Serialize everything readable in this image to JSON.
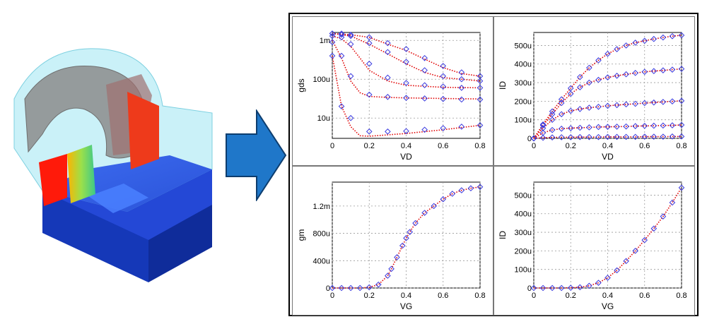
{
  "chart_data": [
    {
      "type": "scatter",
      "xlabel": "VD",
      "ylabel": "gds",
      "yscale": "log",
      "xlim": [
        0,
        0.8
      ],
      "ylim": [
        3e-06,
        0.0016
      ],
      "xticks": [
        "0",
        "0.2",
        "0.4",
        "0.6",
        "0.8"
      ],
      "yticks": [
        {
          "v": 1e-05,
          "label": "10u"
        },
        {
          "v": 0.0001,
          "label": "100u"
        },
        {
          "v": 0.001,
          "label": "1m"
        }
      ],
      "grid": true,
      "series": [
        {
          "x": [
            0,
            0.05,
            0.1,
            0.2,
            0.3,
            0.4,
            0.5,
            0.6,
            0.7,
            0.8
          ],
          "y": [
            0.0015,
            0.0015,
            0.0014,
            0.0012,
            0.00085,
            0.0006,
            0.00035,
            0.00022,
            0.00015,
            0.00012
          ]
        },
        {
          "x": [
            0,
            0.05,
            0.1,
            0.2,
            0.3,
            0.4,
            0.5,
            0.6,
            0.7,
            0.8
          ],
          "y": [
            0.0015,
            0.0014,
            0.0013,
            0.00085,
            0.0005,
            0.00028,
            0.00017,
            0.00012,
            0.0001,
            9e-05
          ]
        },
        {
          "x": [
            0,
            0.05,
            0.1,
            0.2,
            0.3,
            0.4,
            0.5,
            0.6,
            0.7,
            0.8
          ],
          "y": [
            0.0013,
            0.0012,
            0.0008,
            0.00025,
            0.00011,
            8e-05,
            7e-05,
            6.5e-05,
            6e-05,
            6e-05
          ]
        },
        {
          "x": [
            0,
            0.05,
            0.1,
            0.2,
            0.3,
            0.4,
            0.5,
            0.6,
            0.7,
            0.8
          ],
          "y": [
            0.0009,
            0.0004,
            0.00012,
            4e-05,
            3.5e-05,
            3.3e-05,
            3.2e-05,
            3.1e-05,
            3e-05,
            3e-05
          ]
        },
        {
          "x": [
            0,
            0.05,
            0.1,
            0.2,
            0.3,
            0.4,
            0.5,
            0.6,
            0.7,
            0.8
          ],
          "y": [
            0.0004,
            2e-05,
            1e-05,
            4.5e-06,
            4.5e-06,
            4.6e-06,
            5e-06,
            5.5e-06,
            6e-06,
            6.5e-06
          ]
        }
      ],
      "model": [
        {
          "x": [
            0,
            0.1,
            0.2,
            0.3,
            0.4,
            0.5,
            0.6,
            0.7,
            0.8
          ],
          "y": [
            0.0015,
            0.0014,
            0.0012,
            0.0008,
            0.00055,
            0.00033,
            0.0002,
            0.00014,
            0.00012
          ]
        },
        {
          "x": [
            0,
            0.1,
            0.2,
            0.3,
            0.4,
            0.5,
            0.6,
            0.7,
            0.8
          ],
          "y": [
            0.0015,
            0.0013,
            0.0008,
            0.00045,
            0.00025,
            0.00015,
            0.00011,
            0.0001,
            9e-05
          ]
        },
        {
          "x": [
            0,
            0.05,
            0.1,
            0.15,
            0.2,
            0.3,
            0.4,
            0.6,
            0.8
          ],
          "y": [
            0.0013,
            0.0011,
            0.0007,
            0.00035,
            0.00017,
            9e-05,
            7e-05,
            6.2e-05,
            6e-05
          ]
        },
        {
          "x": [
            0,
            0.05,
            0.1,
            0.15,
            0.2,
            0.3,
            0.4,
            0.6,
            0.8
          ],
          "y": [
            0.001,
            0.00035,
            9e-05,
            4.5e-05,
            3.6e-05,
            3.4e-05,
            3.3e-05,
            3.2e-05,
            3.1e-05
          ]
        },
        {
          "x": [
            0,
            0.05,
            0.1,
            0.15,
            0.2,
            0.4,
            0.6,
            0.8
          ],
          "y": [
            0.0004,
            2e-05,
            6e-06,
            3.5e-06,
            3.4e-06,
            4e-06,
            5e-06,
            6.5e-06
          ]
        }
      ]
    },
    {
      "type": "scatter",
      "xlabel": "VD",
      "ylabel": "ID",
      "xlim": [
        0,
        0.8
      ],
      "ylim": [
        0,
        570
      ],
      "xticks": [
        "0",
        "0.2",
        "0.4",
        "0.6",
        "0.8"
      ],
      "yticks": [
        {
          "v": 0,
          "label": "0"
        },
        {
          "v": 100,
          "label": "100u"
        },
        {
          "v": 200,
          "label": "200u"
        },
        {
          "v": 300,
          "label": "300u"
        },
        {
          "v": 400,
          "label": "400u"
        },
        {
          "v": 500,
          "label": "500u"
        }
      ],
      "grid": true,
      "series": [
        {
          "x": [
            0,
            0.05,
            0.1,
            0.15,
            0.2,
            0.25,
            0.3,
            0.35,
            0.4,
            0.45,
            0.5,
            0.55,
            0.6,
            0.65,
            0.7,
            0.75,
            0.8
          ],
          "y": [
            0,
            75,
            145,
            210,
            270,
            330,
            380,
            420,
            455,
            480,
            500,
            515,
            525,
            535,
            543,
            550,
            555
          ]
        },
        {
          "x": [
            0,
            0.05,
            0.1,
            0.15,
            0.2,
            0.25,
            0.3,
            0.35,
            0.4,
            0.45,
            0.5,
            0.55,
            0.6,
            0.65,
            0.7,
            0.75,
            0.8
          ],
          "y": [
            0,
            70,
            130,
            190,
            240,
            275,
            300,
            315,
            328,
            337,
            345,
            352,
            358,
            362,
            366,
            370,
            374
          ]
        },
        {
          "x": [
            0,
            0.05,
            0.1,
            0.15,
            0.2,
            0.25,
            0.3,
            0.35,
            0.4,
            0.45,
            0.5,
            0.55,
            0.6,
            0.65,
            0.7,
            0.75,
            0.8
          ],
          "y": [
            0,
            55,
            100,
            130,
            148,
            158,
            165,
            170,
            175,
            179,
            183,
            186,
            190,
            193,
            196,
            199,
            202
          ]
        },
        {
          "x": [
            0,
            0.05,
            0.1,
            0.15,
            0.2,
            0.25,
            0.3,
            0.35,
            0.4,
            0.45,
            0.5,
            0.55,
            0.6,
            0.65,
            0.7,
            0.75,
            0.8
          ],
          "y": [
            0,
            30,
            45,
            52,
            55,
            57,
            59,
            61,
            62,
            63,
            64,
            66,
            67,
            68,
            69,
            70,
            72
          ]
        },
        {
          "x": [
            0,
            0.05,
            0.1,
            0.15,
            0.2,
            0.25,
            0.3,
            0.35,
            0.4,
            0.45,
            0.5,
            0.55,
            0.6,
            0.65,
            0.7,
            0.75,
            0.8
          ],
          "y": [
            0,
            3,
            5,
            6,
            6,
            7,
            7,
            7,
            8,
            8,
            8,
            8,
            9,
            9,
            9,
            10,
            10
          ]
        }
      ]
    },
    {
      "type": "scatter",
      "xlabel": "VG",
      "ylabel": "gm",
      "xlim": [
        0,
        0.8
      ],
      "ylim": [
        0,
        0.00155
      ],
      "xticks": [
        "0",
        "0.2",
        "0.4",
        "0.6",
        "0.8"
      ],
      "yticks": [
        {
          "v": 0,
          "label": "0"
        },
        {
          "v": 0.0004,
          "label": "400u"
        },
        {
          "v": 0.0008,
          "label": "800u"
        },
        {
          "v": 0.0012,
          "label": "1.2m"
        }
      ],
      "grid": true,
      "series": [
        {
          "x": [
            0,
            0.05,
            0.1,
            0.15,
            0.2,
            0.25,
            0.3,
            0.32,
            0.35,
            0.38,
            0.4,
            0.42,
            0.45,
            0.5,
            0.55,
            0.6,
            0.65,
            0.7,
            0.75,
            0.8
          ],
          "y": [
            0,
            0,
            0,
            0,
            1e-05,
            5e-05,
            0.00018,
            0.00028,
            0.00045,
            0.00062,
            0.00073,
            0.00082,
            0.00095,
            0.0011,
            0.0012,
            0.0013,
            0.00138,
            0.00143,
            0.00146,
            0.00148
          ]
        }
      ]
    },
    {
      "type": "scatter",
      "xlabel": "VG",
      "ylabel": "ID",
      "xlim": [
        0,
        0.8
      ],
      "ylim": [
        0,
        570
      ],
      "xticks": [
        "0",
        "0.2",
        "0.4",
        "0.6",
        "0.8"
      ],
      "yticks": [
        {
          "v": 0,
          "label": "0"
        },
        {
          "v": 100,
          "label": "100u"
        },
        {
          "v": 200,
          "label": "200u"
        },
        {
          "v": 300,
          "label": "300u"
        },
        {
          "v": 400,
          "label": "400u"
        },
        {
          "v": 500,
          "label": "500u"
        }
      ],
      "grid": true,
      "series": [
        {
          "x": [
            0,
            0.05,
            0.1,
            0.15,
            0.2,
            0.25,
            0.3,
            0.35,
            0.4,
            0.45,
            0.5,
            0.55,
            0.6,
            0.65,
            0.7,
            0.75,
            0.8
          ],
          "y": [
            0,
            0,
            0,
            0,
            1,
            4,
            12,
            28,
            55,
            95,
            145,
            200,
            258,
            320,
            385,
            460,
            540
          ]
        }
      ]
    }
  ],
  "colors": {
    "measured": "#3a3adf",
    "model": "#e00000",
    "arrow_fill": "#1f77c9",
    "arrow_stroke": "#0d3d6e",
    "grid": "#9a9a9a"
  }
}
